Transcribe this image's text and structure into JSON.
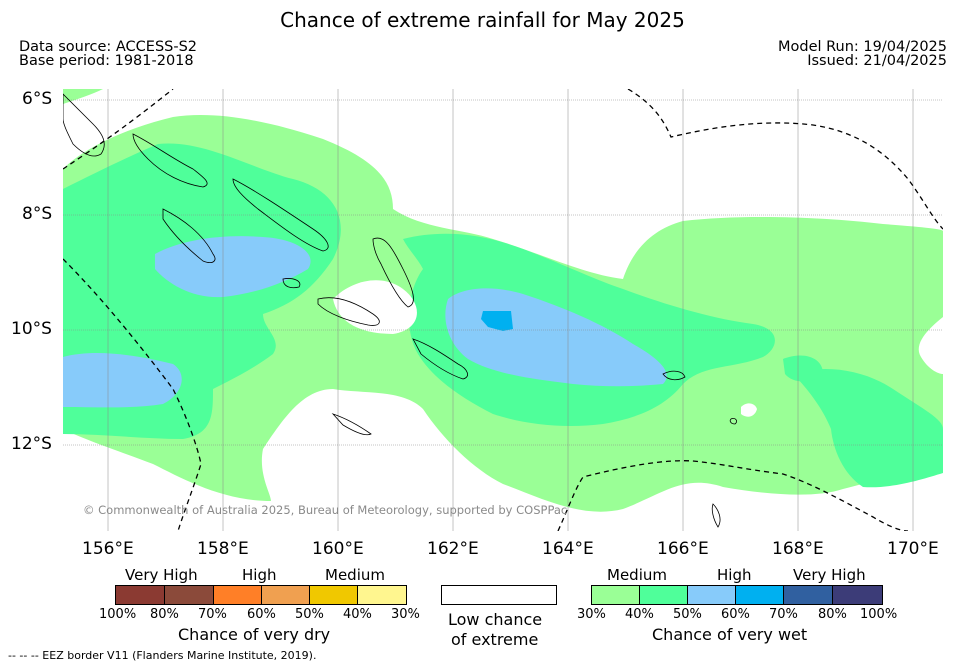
{
  "title": "Chance of extreme rainfall for May 2025",
  "data_source": "Data source: ACCESS-S2",
  "base_period": "Base period: 1981-2018",
  "model_run": "Model Run: 19/04/2025",
  "issued": "Issued: 21/04/2025",
  "latitudes": [
    "6°S",
    "8°S",
    "10°S",
    "12°S"
  ],
  "longitudes": [
    "156°E",
    "158°E",
    "160°E",
    "162°E",
    "164°E",
    "166°E",
    "168°E",
    "170°E"
  ],
  "copyright": "© Commonwealth of Australia 2025, Bureau of Meteorology, supported by COSPPac",
  "legend_dry": {
    "categories": [
      "Very High",
      "High",
      "Medium"
    ],
    "ticks": [
      "100%",
      "80%",
      "70%",
      "60%",
      "50%",
      "40%",
      "30%"
    ],
    "colors": [
      "#8b3a32",
      "#8b4a3a",
      "#ff7f27",
      "#f0a050",
      "#f0c800",
      "#fff68f"
    ],
    "label": "Chance of very dry"
  },
  "legend_low": {
    "label_line1": "Low chance",
    "label_line2": "of extreme"
  },
  "legend_wet": {
    "categories": [
      "Medium",
      "High",
      "Very High"
    ],
    "ticks": [
      "30%",
      "40%",
      "50%",
      "60%",
      "70%",
      "80%",
      "100%"
    ],
    "colors": [
      "#9aff96",
      "#4fff9a",
      "#87cbfa",
      "#00b0f0",
      "#3060a0",
      "#3c3c78"
    ],
    "label": "Chance of very wet"
  },
  "footer": "--  --  -- EEZ border V11 (Flanders Marine Institute, 2019)."
}
